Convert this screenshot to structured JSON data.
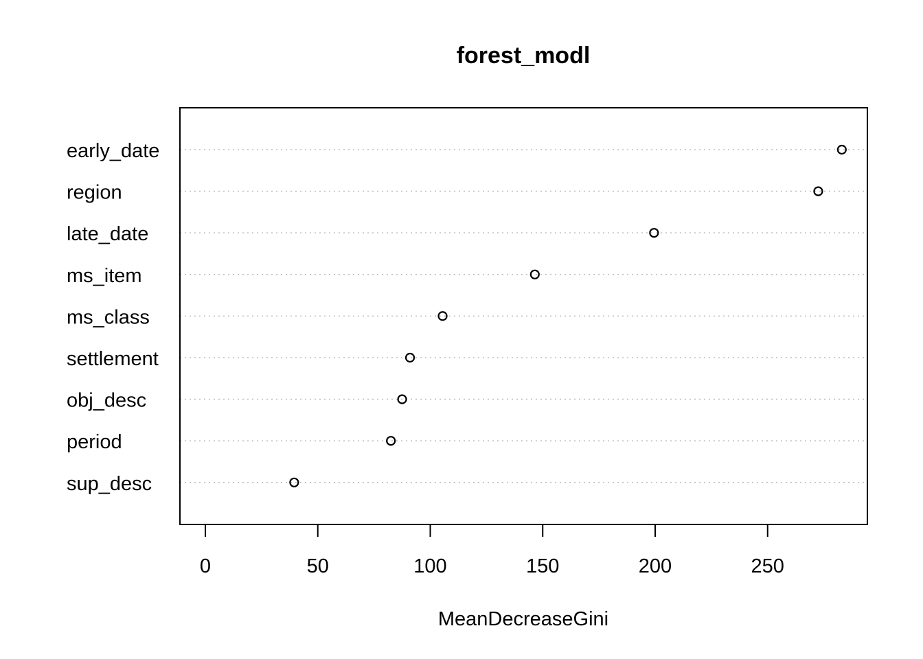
{
  "chart_data": {
    "type": "scatter",
    "title": "forest_modl",
    "xlabel": "MeanDecreaseGini",
    "ylabel": "",
    "categories": [
      "early_date",
      "region",
      "late_date",
      "ms_item",
      "ms_class",
      "settlement",
      "obj_desc",
      "period",
      "sup_desc"
    ],
    "values": [
      283,
      272.5,
      199.5,
      146.5,
      105.5,
      91,
      87.5,
      82.5,
      39.5
    ],
    "xlim": [
      0,
      290
    ],
    "xticks": [
      0,
      50,
      100,
      150,
      200,
      250
    ],
    "grid": "dotted horizontal lines",
    "marker": "open-circle",
    "colors": {
      "points": "#000000",
      "grid": "#bebebe",
      "frame": "#000000"
    }
  }
}
